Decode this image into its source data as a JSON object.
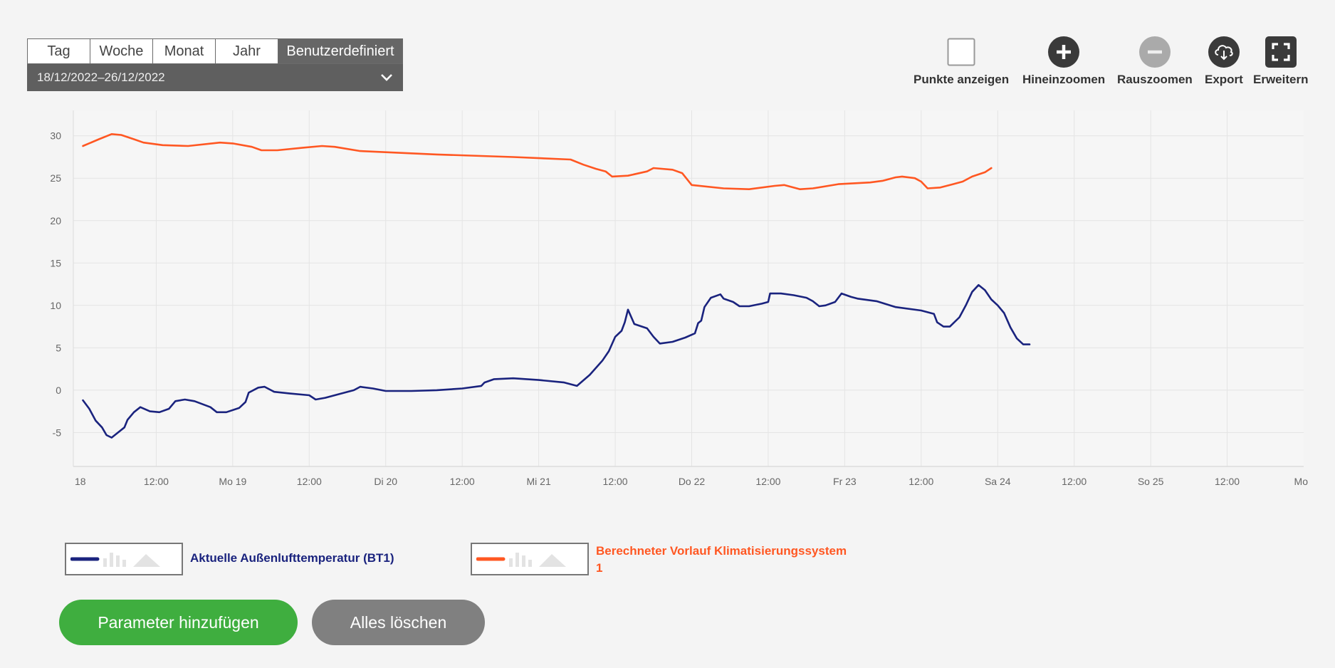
{
  "period": {
    "tabs": [
      "Tag",
      "Woche",
      "Monat",
      "Jahr",
      "Benutzerdefiniert"
    ],
    "active_index": 4,
    "range_label": "18/12/2022–26/12/2022"
  },
  "toolbar": {
    "show_points": "Punkte anzeigen",
    "zoom_in": "Hineinzoomen",
    "zoom_out": "Rauszoomen",
    "export": "Export",
    "expand": "Erweitern"
  },
  "legend": {
    "item1": "Aktuelle Außenlufttemperatur (BT1)",
    "item2_line1": "Berechneter Vorlauf Klimatisierungssystem",
    "item2_line2": "1"
  },
  "buttons": {
    "add_parameter": "Parameter hinzufügen",
    "clear_all": "Alles löschen"
  },
  "colors": {
    "series1": "#1a237e",
    "series2": "#ff5722",
    "add_button": "#3fae3f",
    "clear_button": "#808080",
    "tab_active": "#666666"
  },
  "chart_data": {
    "type": "line",
    "xlabel": "",
    "ylabel": "",
    "x_unit": "hours since 18 Dec 2022 00:00",
    "xlim": [
      0,
      192
    ],
    "ylim": [
      -9,
      33
    ],
    "yticks": [
      30,
      25,
      20,
      15,
      10,
      5,
      0,
      -5
    ],
    "xticks": [
      {
        "x": 0,
        "label": "18"
      },
      {
        "x": 12,
        "label": "12:00"
      },
      {
        "x": 24,
        "label": "Mo 19"
      },
      {
        "x": 36,
        "label": "12:00"
      },
      {
        "x": 48,
        "label": "Di 20"
      },
      {
        "x": 60,
        "label": "12:00"
      },
      {
        "x": 72,
        "label": "Mi 21"
      },
      {
        "x": 84,
        "label": "12:00"
      },
      {
        "x": 96,
        "label": "Do 22"
      },
      {
        "x": 108,
        "label": "12:00"
      },
      {
        "x": 120,
        "label": "Fr 23"
      },
      {
        "x": 132,
        "label": "12:00"
      },
      {
        "x": 144,
        "label": "Sa 24"
      },
      {
        "x": 156,
        "label": "12:00"
      },
      {
        "x": 168,
        "label": "So 25"
      },
      {
        "x": 180,
        "label": "12:00"
      },
      {
        "x": 192,
        "label": "Mo"
      }
    ],
    "grid": true,
    "series": [
      {
        "name": "Aktuelle Außenlufttemperatur (BT1)",
        "points": [
          [
            0.5,
            -1.2
          ],
          [
            1.5,
            -2.2
          ],
          [
            2.5,
            -3.6
          ],
          [
            3.5,
            -4.4
          ],
          [
            4.2,
            -5.3
          ],
          [
            5,
            -5.6
          ],
          [
            6,
            -5.0
          ],
          [
            7,
            -4.4
          ],
          [
            7.5,
            -3.5
          ],
          [
            8.5,
            -2.6
          ],
          [
            9.5,
            -2.0
          ],
          [
            11,
            -2.5
          ],
          [
            12.5,
            -2.6
          ],
          [
            14,
            -2.2
          ],
          [
            15,
            -1.3
          ],
          [
            16.5,
            -1.1
          ],
          [
            18,
            -1.3
          ],
          [
            20.5,
            -2.0
          ],
          [
            21.5,
            -2.6
          ],
          [
            23,
            -2.6
          ],
          [
            25,
            -2.1
          ],
          [
            26,
            -1.4
          ],
          [
            26.5,
            -0.3
          ],
          [
            28,
            0.3
          ],
          [
            29,
            0.4
          ],
          [
            30.5,
            -0.2
          ],
          [
            33,
            -0.4
          ],
          [
            36,
            -0.6
          ],
          [
            37,
            -1.1
          ],
          [
            38.5,
            -0.9
          ],
          [
            41,
            -0.4
          ],
          [
            43,
            0.0
          ],
          [
            44,
            0.4
          ],
          [
            46,
            0.2
          ],
          [
            48,
            -0.1
          ],
          [
            52,
            -0.1
          ],
          [
            56,
            0.0
          ],
          [
            60,
            0.2
          ],
          [
            63,
            0.5
          ],
          [
            63.5,
            0.9
          ],
          [
            65,
            1.3
          ],
          [
            68,
            1.4
          ],
          [
            72,
            1.2
          ],
          [
            76,
            0.9
          ],
          [
            78,
            0.5
          ],
          [
            80,
            1.8
          ],
          [
            82,
            3.5
          ],
          [
            83,
            4.6
          ],
          [
            84,
            6.3
          ],
          [
            85,
            7.0
          ],
          [
            85.5,
            8.0
          ],
          [
            86,
            9.5
          ],
          [
            87,
            7.8
          ],
          [
            89,
            7.3
          ],
          [
            90,
            6.3
          ],
          [
            91,
            5.5
          ],
          [
            93,
            5.7
          ],
          [
            95,
            6.2
          ],
          [
            96.5,
            6.7
          ],
          [
            97,
            7.9
          ],
          [
            97.5,
            8.2
          ],
          [
            98,
            9.8
          ],
          [
            99,
            10.9
          ],
          [
            100.5,
            11.3
          ],
          [
            101,
            10.8
          ],
          [
            102.5,
            10.4
          ],
          [
            103.5,
            9.9
          ],
          [
            105,
            9.9
          ],
          [
            107,
            10.2
          ],
          [
            108,
            10.4
          ],
          [
            108.3,
            11.4
          ],
          [
            110,
            11.4
          ],
          [
            112,
            11.2
          ],
          [
            114,
            10.9
          ],
          [
            115,
            10.5
          ],
          [
            116,
            9.9
          ],
          [
            117,
            10.0
          ],
          [
            118.5,
            10.4
          ],
          [
            119.5,
            11.4
          ],
          [
            121,
            11.0
          ],
          [
            122,
            10.8
          ],
          [
            125,
            10.5
          ],
          [
            128,
            9.8
          ],
          [
            132,
            9.4
          ],
          [
            134,
            9.0
          ],
          [
            134.5,
            8.0
          ],
          [
            135.5,
            7.5
          ],
          [
            136.5,
            7.5
          ],
          [
            138,
            8.6
          ],
          [
            139,
            10.0
          ],
          [
            140,
            11.6
          ],
          [
            141,
            12.4
          ],
          [
            142,
            11.8
          ],
          [
            143,
            10.7
          ],
          [
            144,
            10.0
          ],
          [
            145,
            9.1
          ],
          [
            146,
            7.4
          ],
          [
            147,
            6.1
          ],
          [
            148,
            5.4
          ],
          [
            149,
            5.4
          ]
        ]
      },
      {
        "name": "Berechneter Vorlauf Klimatisierungssystem 1",
        "points": [
          [
            0.5,
            28.8
          ],
          [
            3,
            29.6
          ],
          [
            5,
            30.2
          ],
          [
            6.5,
            30.1
          ],
          [
            8.5,
            29.6
          ],
          [
            10,
            29.2
          ],
          [
            13,
            28.9
          ],
          [
            17,
            28.8
          ],
          [
            22,
            29.2
          ],
          [
            24,
            29.1
          ],
          [
            27,
            28.7
          ],
          [
            28.5,
            28.3
          ],
          [
            31,
            28.3
          ],
          [
            35,
            28.6
          ],
          [
            38,
            28.8
          ],
          [
            40,
            28.7
          ],
          [
            44,
            28.2
          ],
          [
            56,
            27.8
          ],
          [
            68,
            27.5
          ],
          [
            77,
            27.2
          ],
          [
            79,
            26.6
          ],
          [
            81,
            26.1
          ],
          [
            82.5,
            25.8
          ],
          [
            83.5,
            25.2
          ],
          [
            86,
            25.3
          ],
          [
            89,
            25.8
          ],
          [
            90,
            26.2
          ],
          [
            93,
            26.0
          ],
          [
            94.5,
            25.6
          ],
          [
            96,
            24.2
          ],
          [
            101,
            23.8
          ],
          [
            105,
            23.7
          ],
          [
            109,
            24.1
          ],
          [
            110.5,
            24.2
          ],
          [
            113,
            23.7
          ],
          [
            115,
            23.8
          ],
          [
            119,
            24.3
          ],
          [
            124,
            24.5
          ],
          [
            126,
            24.7
          ],
          [
            128,
            25.1
          ],
          [
            129,
            25.2
          ],
          [
            131,
            25.0
          ],
          [
            132,
            24.6
          ],
          [
            133,
            23.8
          ],
          [
            135,
            23.9
          ],
          [
            137,
            24.3
          ],
          [
            138.5,
            24.6
          ],
          [
            140,
            25.2
          ],
          [
            142,
            25.7
          ],
          [
            143,
            26.2
          ]
        ]
      }
    ]
  }
}
